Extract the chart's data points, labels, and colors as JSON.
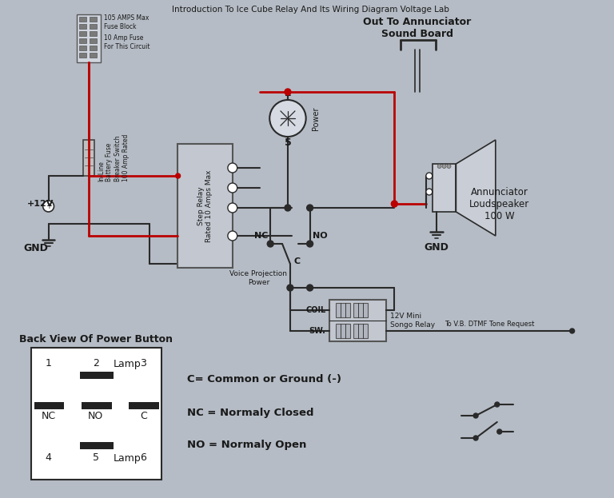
{
  "title": "Introduction To Ice Cube Relay And Its Wiring Diagram Voltage Lab",
  "bg_color": "#b5bcc5",
  "line_color_dark": "#2a2a2a",
  "line_color_red": "#bb0000",
  "text_color": "#1a1a1a",
  "box_color": "#c8cdd6",
  "box_edge": "#666666",
  "annotation_texts": {
    "top_annunciator": "Out To Annunciator\nSound Board",
    "annunciator_label": "Annunciator\nLoudspeaker\n100 W",
    "plus12v": "+12V",
    "gnd_left": "GND",
    "gnd_mid": "GND",
    "step_relay": "Step Relay\nRated 10 Amps Max",
    "fuse_block": "105 AMPS Max\nFuse Block",
    "fuse_circuit": "10 Amp Fuse\nFor This Circuit",
    "battery_fuse": "In-Line\nBattery Fuse\nBreaker Switch\n100 Amp Rated",
    "power_label": "Power",
    "num2": "2",
    "num5": "5",
    "nc_label": "NC",
    "no_label": "NO",
    "c_label": "C",
    "voice_proj": "Voice Projection\nPower",
    "coil_label": "COIL",
    "sw_label": "SW.",
    "mini_relay": "12V Mini\nSongo Relay",
    "dtmf_label": "To V.B. DTMF Tone Request",
    "back_view": "Back View Of Power Button",
    "num1": "1",
    "num2b": "2",
    "lamp_top": "Lamp",
    "num3": "3",
    "nc_b": "NC",
    "no_b": "NO",
    "c_b": "C",
    "num4": "4",
    "num5b": "5",
    "lamp_bot": "Lamp",
    "num6": "6",
    "legend_c": "C= Common or Ground (-)",
    "legend_nc": "NC = Normaly Closed",
    "legend_no": "NO = Normaly Open"
  }
}
